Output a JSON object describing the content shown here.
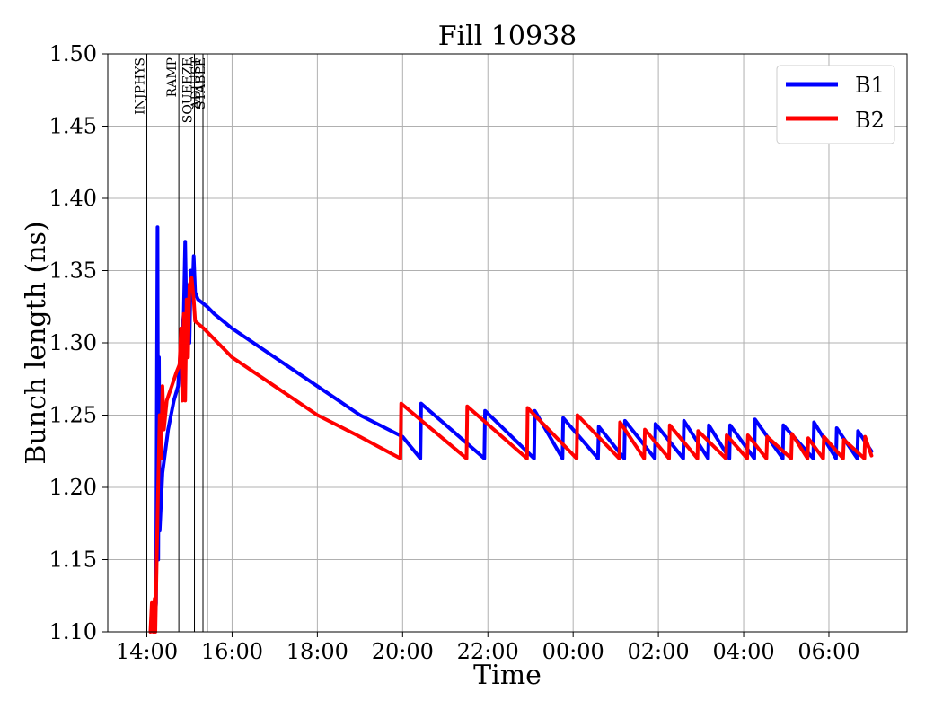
{
  "chart_data": {
    "type": "line",
    "title": "Fill 10938",
    "xlabel": "Time",
    "ylabel": "Bunch length (ns)",
    "xlim": [
      "13:05",
      "07:50"
    ],
    "ylim": [
      1.1,
      1.5
    ],
    "grid": true,
    "legend_position": "top-right",
    "x_ticks": [
      "14:00",
      "16:00",
      "18:00",
      "20:00",
      "22:00",
      "00:00",
      "02:00",
      "04:00",
      "06:00"
    ],
    "y_ticks": [
      "1.10",
      "1.15",
      "1.20",
      "1.25",
      "1.30",
      "1.35",
      "1.40",
      "1.45",
      "1.50"
    ],
    "phase_markers": [
      {
        "label": "INJPHYS",
        "time": "14:00"
      },
      {
        "label": "RAMP",
        "time": "14:45"
      },
      {
        "label": "SQUEEZE",
        "time": "15:07"
      },
      {
        "label": "ADJUST",
        "time": "15:19"
      },
      {
        "label": "STABLE",
        "time": "15:25"
      }
    ],
    "series": [
      {
        "name": "B1",
        "color": "#0000ff",
        "points": [
          [
            "14:10",
            1.1
          ],
          [
            "14:13",
            1.12
          ],
          [
            "14:15",
            1.38
          ],
          [
            "14:16",
            1.15
          ],
          [
            "14:17",
            1.29
          ],
          [
            "14:18",
            1.17
          ],
          [
            "14:22",
            1.21
          ],
          [
            "14:30",
            1.24
          ],
          [
            "14:38",
            1.26
          ],
          [
            "14:44",
            1.27
          ],
          [
            "14:48",
            1.3
          ],
          [
            "14:52",
            1.32
          ],
          [
            "14:54",
            1.37
          ],
          [
            "14:56",
            1.31
          ],
          [
            "14:58",
            1.34
          ],
          [
            "15:00",
            1.3
          ],
          [
            "15:02",
            1.35
          ],
          [
            "15:04",
            1.33
          ],
          [
            "15:06",
            1.36
          ],
          [
            "15:08",
            1.335
          ],
          [
            "15:12",
            1.33
          ],
          [
            "15:25",
            1.325
          ],
          [
            "15:35",
            1.32
          ],
          [
            "16:00",
            1.31
          ],
          [
            "17:00",
            1.29
          ],
          [
            "18:00",
            1.27
          ],
          [
            "19:00",
            1.25
          ],
          [
            "20:00",
            1.235
          ],
          [
            "20:25",
            1.22
          ],
          [
            "20:26",
            1.258
          ],
          [
            "21:55",
            1.22
          ],
          [
            "21:56",
            1.253
          ],
          [
            "23:05",
            1.22
          ],
          [
            "23:06",
            1.253
          ],
          [
            "23:45",
            1.22
          ],
          [
            "23:46",
            1.248
          ],
          [
            "00:35",
            1.22
          ],
          [
            "00:36",
            1.242
          ],
          [
            "01:12",
            1.22
          ],
          [
            "01:13",
            1.246
          ],
          [
            "01:55",
            1.22
          ],
          [
            "01:56",
            1.244
          ],
          [
            "02:35",
            1.22
          ],
          [
            "02:36",
            1.246
          ],
          [
            "03:10",
            1.22
          ],
          [
            "03:11",
            1.243
          ],
          [
            "03:40",
            1.22
          ],
          [
            "03:41",
            1.243
          ],
          [
            "04:15",
            1.22
          ],
          [
            "04:16",
            1.247
          ],
          [
            "04:55",
            1.22
          ],
          [
            "04:56",
            1.243
          ],
          [
            "05:38",
            1.22
          ],
          [
            "05:39",
            1.245
          ],
          [
            "06:10",
            1.22
          ],
          [
            "06:11",
            1.241
          ],
          [
            "06:40",
            1.22
          ],
          [
            "06:41",
            1.239
          ],
          [
            "07:00",
            1.225
          ]
        ]
      },
      {
        "name": "B2",
        "color": "#ff0000",
        "points": [
          [
            "14:05",
            1.1
          ],
          [
            "14:07",
            1.12
          ],
          [
            "14:09",
            1.1
          ],
          [
            "14:11",
            1.123
          ],
          [
            "14:12",
            1.1
          ],
          [
            "14:15",
            1.18
          ],
          [
            "14:18",
            1.25
          ],
          [
            "14:20",
            1.22
          ],
          [
            "14:22",
            1.27
          ],
          [
            "14:24",
            1.24
          ],
          [
            "14:28",
            1.26
          ],
          [
            "14:35",
            1.27
          ],
          [
            "14:42",
            1.28
          ],
          [
            "14:46",
            1.285
          ],
          [
            "14:48",
            1.31
          ],
          [
            "14:50",
            1.26
          ],
          [
            "14:52",
            1.32
          ],
          [
            "14:54",
            1.26
          ],
          [
            "14:56",
            1.33
          ],
          [
            "14:58",
            1.29
          ],
          [
            "15:00",
            1.34
          ],
          [
            "15:03",
            1.345
          ],
          [
            "15:06",
            1.33
          ],
          [
            "15:08",
            1.315
          ],
          [
            "15:20",
            1.31
          ],
          [
            "15:40",
            1.3
          ],
          [
            "16:00",
            1.29
          ],
          [
            "17:00",
            1.27
          ],
          [
            "18:00",
            1.25
          ],
          [
            "19:00",
            1.235
          ],
          [
            "19:57",
            1.22
          ],
          [
            "19:58",
            1.258
          ],
          [
            "21:30",
            1.22
          ],
          [
            "21:31",
            1.256
          ],
          [
            "22:55",
            1.22
          ],
          [
            "22:56",
            1.255
          ],
          [
            "00:05",
            1.22
          ],
          [
            "00:06",
            1.25
          ],
          [
            "01:05",
            1.22
          ],
          [
            "01:06",
            1.245
          ],
          [
            "01:40",
            1.22
          ],
          [
            "01:41",
            1.24
          ],
          [
            "02:15",
            1.22
          ],
          [
            "02:16",
            1.243
          ],
          [
            "02:55",
            1.22
          ],
          [
            "02:56",
            1.239
          ],
          [
            "03:35",
            1.22
          ],
          [
            "03:36",
            1.236
          ],
          [
            "04:05",
            1.22
          ],
          [
            "04:06",
            1.236
          ],
          [
            "04:32",
            1.22
          ],
          [
            "04:33",
            1.235
          ],
          [
            "05:07",
            1.22
          ],
          [
            "05:08",
            1.237
          ],
          [
            "05:30",
            1.22
          ],
          [
            "05:31",
            1.234
          ],
          [
            "05:52",
            1.22
          ],
          [
            "05:53",
            1.235
          ],
          [
            "06:20",
            1.22
          ],
          [
            "06:21",
            1.233
          ],
          [
            "06:50",
            1.22
          ],
          [
            "06:51",
            1.235
          ],
          [
            "07:00",
            1.222
          ]
        ]
      }
    ]
  }
}
